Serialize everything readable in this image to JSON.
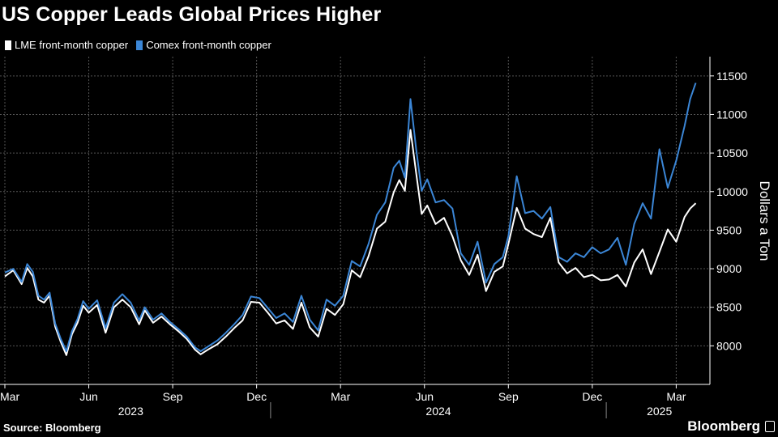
{
  "title": "US Copper Leads Global Prices Higher",
  "legend": {
    "lme": "LME front-month copper",
    "comex": "Comex front-month copper"
  },
  "source": "Source: Bloomberg",
  "brand": "Bloomberg",
  "colors": {
    "lme": "#ffffff",
    "comex": "#3b86d6",
    "grid": "#555555",
    "background": "#000000"
  },
  "chart_data": {
    "type": "line",
    "title": "US Copper Leads Global Prices Higher",
    "xlabel": "",
    "ylabel": "Dollars a Ton",
    "ylim": [
      7500,
      11750
    ],
    "yticks": [
      8000,
      8500,
      9000,
      9500,
      10000,
      10500,
      11000,
      11500
    ],
    "xlim": [
      0,
      24.8
    ],
    "x_unit": "months since 2023-03-01",
    "xticks": [
      {
        "x": 0,
        "label": "Mar"
      },
      {
        "x": 3,
        "label": "Jun"
      },
      {
        "x": 6,
        "label": "Sep"
      },
      {
        "x": 9,
        "label": "Dec"
      },
      {
        "x": 12,
        "label": "Mar"
      },
      {
        "x": 15,
        "label": "Jun"
      },
      {
        "x": 18,
        "label": "Sep"
      },
      {
        "x": 21,
        "label": "Dec"
      },
      {
        "x": 24,
        "label": "Mar"
      }
    ],
    "year_labels": [
      {
        "x": 4.5,
        "label": "2023"
      },
      {
        "x": 15.5,
        "label": "2024"
      },
      {
        "x": 23.4,
        "label": "2025"
      }
    ],
    "year_dividers": [
      9.5,
      21.5
    ],
    "series": [
      {
        "name": "LME front-month copper",
        "x": [
          0,
          0.3,
          0.6,
          0.8,
          1.0,
          1.2,
          1.4,
          1.6,
          1.8,
          2.0,
          2.2,
          2.4,
          2.6,
          2.8,
          3.0,
          3.3,
          3.6,
          3.9,
          4.2,
          4.5,
          4.8,
          5.0,
          5.3,
          5.6,
          5.9,
          6.2,
          6.5,
          6.8,
          7.0,
          7.3,
          7.6,
          7.9,
          8.2,
          8.5,
          8.8,
          9.1,
          9.4,
          9.7,
          10.0,
          10.3,
          10.6,
          10.9,
          11.2,
          11.5,
          11.8,
          12.1,
          12.4,
          12.7,
          13.0,
          13.3,
          13.6,
          13.9,
          14.1,
          14.3,
          14.5,
          14.7,
          14.9,
          15.1,
          15.4,
          15.7,
          16.0,
          16.3,
          16.6,
          16.9,
          17.2,
          17.5,
          17.8,
          18.0,
          18.3,
          18.6,
          18.9,
          19.2,
          19.5,
          19.8,
          20.1,
          20.4,
          20.7,
          21.0,
          21.3,
          21.6,
          21.9,
          22.2,
          22.5,
          22.8,
          23.1,
          23.4,
          23.7,
          24.0,
          24.3,
          24.5,
          24.7
        ],
        "values": [
          8900,
          8980,
          8800,
          9010,
          8900,
          8600,
          8560,
          8650,
          8250,
          8050,
          7880,
          8150,
          8300,
          8520,
          8430,
          8530,
          8170,
          8500,
          8600,
          8500,
          8280,
          8460,
          8300,
          8380,
          8280,
          8190,
          8090,
          7950,
          7890,
          7960,
          8020,
          8120,
          8230,
          8330,
          8570,
          8560,
          8430,
          8290,
          8330,
          8220,
          8560,
          8240,
          8120,
          8480,
          8400,
          8540,
          8980,
          8890,
          9160,
          9520,
          9610,
          9990,
          10150,
          10010,
          10800,
          10250,
          9710,
          9820,
          9580,
          9660,
          9420,
          9110,
          8920,
          9180,
          8710,
          8960,
          9030,
          9320,
          9790,
          9520,
          9450,
          9410,
          9660,
          9080,
          8940,
          9010,
          8890,
          8920,
          8850,
          8860,
          8920,
          8770,
          9080,
          9250,
          8930,
          9220,
          9510,
          9350,
          9670,
          9780,
          9850
        ]
      },
      {
        "name": "Comex front-month copper",
        "x": [
          0,
          0.3,
          0.6,
          0.8,
          1.0,
          1.2,
          1.4,
          1.6,
          1.8,
          2.0,
          2.2,
          2.4,
          2.6,
          2.8,
          3.0,
          3.3,
          3.6,
          3.9,
          4.2,
          4.5,
          4.8,
          5.0,
          5.3,
          5.6,
          5.9,
          6.2,
          6.5,
          6.8,
          7.0,
          7.3,
          7.6,
          7.9,
          8.2,
          8.5,
          8.8,
          9.1,
          9.4,
          9.7,
          10.0,
          10.3,
          10.6,
          10.9,
          11.2,
          11.5,
          11.8,
          12.1,
          12.4,
          12.7,
          13.0,
          13.3,
          13.6,
          13.9,
          14.1,
          14.3,
          14.5,
          14.7,
          14.9,
          15.1,
          15.4,
          15.7,
          16.0,
          16.3,
          16.6,
          16.9,
          17.2,
          17.5,
          17.8,
          18.0,
          18.3,
          18.6,
          18.9,
          19.2,
          19.5,
          19.8,
          20.1,
          20.4,
          20.7,
          21.0,
          21.3,
          21.6,
          21.9,
          22.2,
          22.5,
          22.8,
          23.1,
          23.4,
          23.7,
          24.0,
          24.3,
          24.5,
          24.7
        ],
        "values": [
          8950,
          9000,
          8830,
          9060,
          8960,
          8650,
          8600,
          8690,
          8290,
          8090,
          7930,
          8190,
          8350,
          8580,
          8480,
          8590,
          8230,
          8560,
          8670,
          8560,
          8330,
          8500,
          8340,
          8420,
          8310,
          8220,
          8120,
          7980,
          7930,
          8000,
          8070,
          8170,
          8280,
          8400,
          8640,
          8620,
          8490,
          8360,
          8420,
          8310,
          8650,
          8340,
          8200,
          8600,
          8520,
          8650,
          9100,
          9030,
          9320,
          9700,
          9860,
          10310,
          10400,
          10180,
          11200,
          10560,
          10010,
          10160,
          9860,
          9890,
          9780,
          9200,
          9050,
          9350,
          8820,
          9060,
          9150,
          9420,
          10200,
          9720,
          9750,
          9650,
          9800,
          9150,
          9090,
          9200,
          9150,
          9280,
          9200,
          9250,
          9400,
          9050,
          9580,
          9850,
          9650,
          10550,
          10050,
          10400,
          10850,
          11200,
          11410
        ]
      }
    ]
  }
}
